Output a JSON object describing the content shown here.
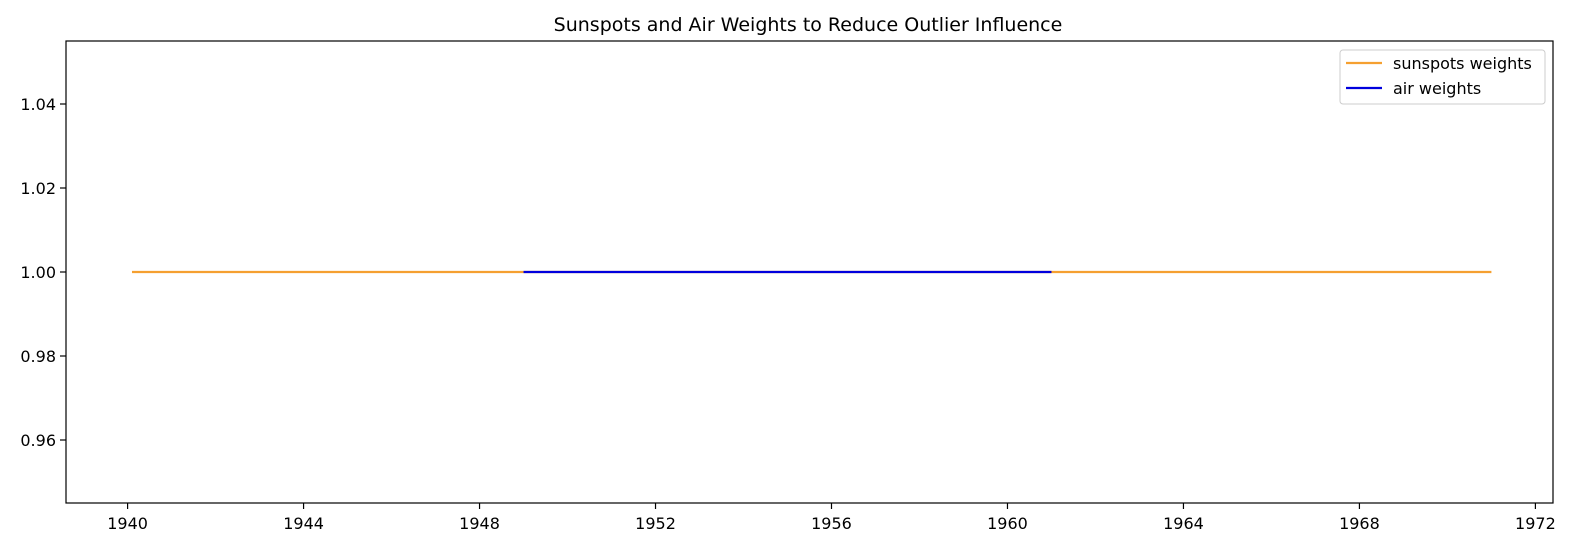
{
  "chart_data": {
    "type": "line",
    "title": "Sunspots and Air Weights to Reduce Outlier Influence",
    "xlabel": "",
    "ylabel": "",
    "xlim": [
      1938.6,
      1972.4
    ],
    "ylim": [
      0.945,
      1.055
    ],
    "x_ticks": [
      1940,
      1944,
      1948,
      1952,
      1956,
      1960,
      1964,
      1968,
      1972
    ],
    "y_ticks": [
      0.96,
      0.98,
      1.0,
      1.02,
      1.04
    ],
    "y_tick_labels": [
      "0.96",
      "0.98",
      "1.00",
      "1.02",
      "1.04"
    ],
    "grid": false,
    "legend_position": "top-right",
    "series": [
      {
        "name": "sunspots weights",
        "color": "#f5a030",
        "x": [
          1940.1,
          1971.0
        ],
        "y": [
          1.0,
          1.0
        ]
      },
      {
        "name": "air weights",
        "color": "#0000dd",
        "x": [
          1949.0,
          1961.0
        ],
        "y": [
          1.0,
          1.0
        ]
      }
    ]
  }
}
